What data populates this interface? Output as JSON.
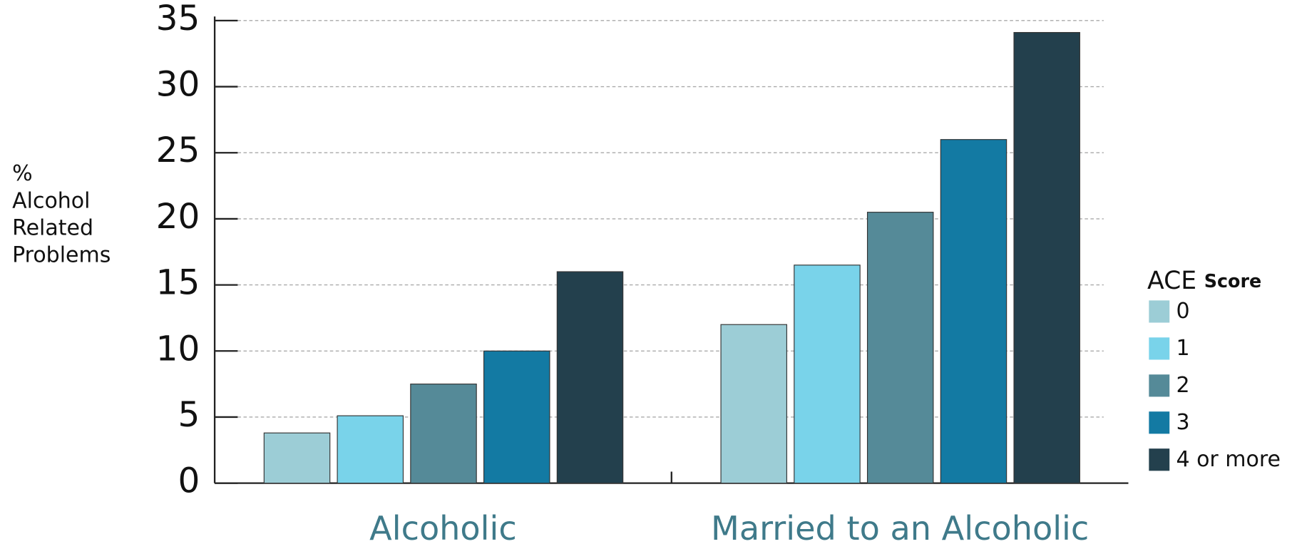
{
  "chart_data": {
    "type": "bar",
    "y_label": [
      "%",
      "Alcohol",
      "Related",
      "Problems"
    ],
    "categories": [
      "Alcoholic",
      "Married to an Alcoholic"
    ],
    "legend_title": "ACE",
    "legend_subtitle": "Score",
    "series": [
      {
        "name": "0",
        "color": "#9ccdd6",
        "values": [
          3.8,
          12
        ]
      },
      {
        "name": "1",
        "color": "#79d3ea",
        "values": [
          5.1,
          16.5
        ]
      },
      {
        "name": "2",
        "color": "#558a98",
        "values": [
          7.5,
          20.5
        ]
      },
      {
        "name": "3",
        "color": "#137aa3",
        "values": [
          10,
          26
        ]
      },
      {
        "name": "4 or more",
        "color": "#23404d",
        "values": [
          16,
          34.1
        ]
      }
    ],
    "ylim": [
      0,
      35
    ],
    "yticks": [
      0,
      5,
      10,
      15,
      20,
      25,
      30,
      35
    ],
    "grid": true,
    "legend": "right"
  }
}
